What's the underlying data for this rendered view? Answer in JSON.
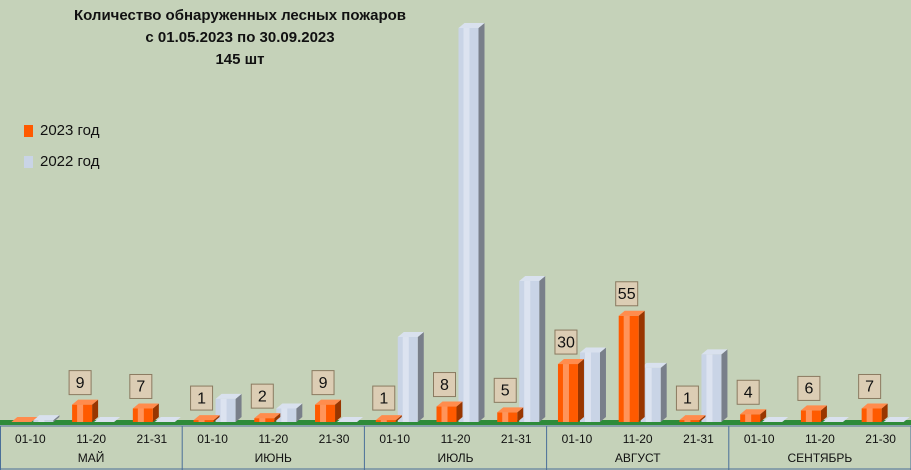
{
  "chart_data": {
    "type": "bar3d",
    "title_lines": [
      "Количество обнаруженных лесных пожаров",
      "с 01.05.2023  по  30.09.2023",
      "145 шт"
    ],
    "groups": [
      {
        "label": "МАЙ",
        "categories": [
          "01-10",
          "11-20",
          "21-31"
        ]
      },
      {
        "label": "ИЮНЬ",
        "categories": [
          "01-10",
          "11-20",
          "21-30"
        ]
      },
      {
        "label": "ИЮЛЬ",
        "categories": [
          "01-10",
          "11-20",
          "21-31"
        ]
      },
      {
        "label": "АВГУСТ",
        "categories": [
          "01-10",
          "11-20",
          "21-31"
        ]
      },
      {
        "label": "СЕНТЯБРЬ",
        "categories": [
          "01-10",
          "11-20",
          "21-30"
        ]
      }
    ],
    "series": [
      {
        "name": "2023 год",
        "color": "#ff5a00",
        "values": [
          0,
          9,
          7,
          1,
          2,
          9,
          1,
          8,
          5,
          30,
          55,
          1,
          4,
          6,
          7
        ]
      },
      {
        "name": "2022 год",
        "color": "#c9d4e6",
        "values": [
          1,
          0,
          0,
          12,
          7,
          0,
          44,
          204,
          73,
          36,
          28,
          35,
          0,
          0,
          0
        ]
      }
    ],
    "legend": "left"
  }
}
